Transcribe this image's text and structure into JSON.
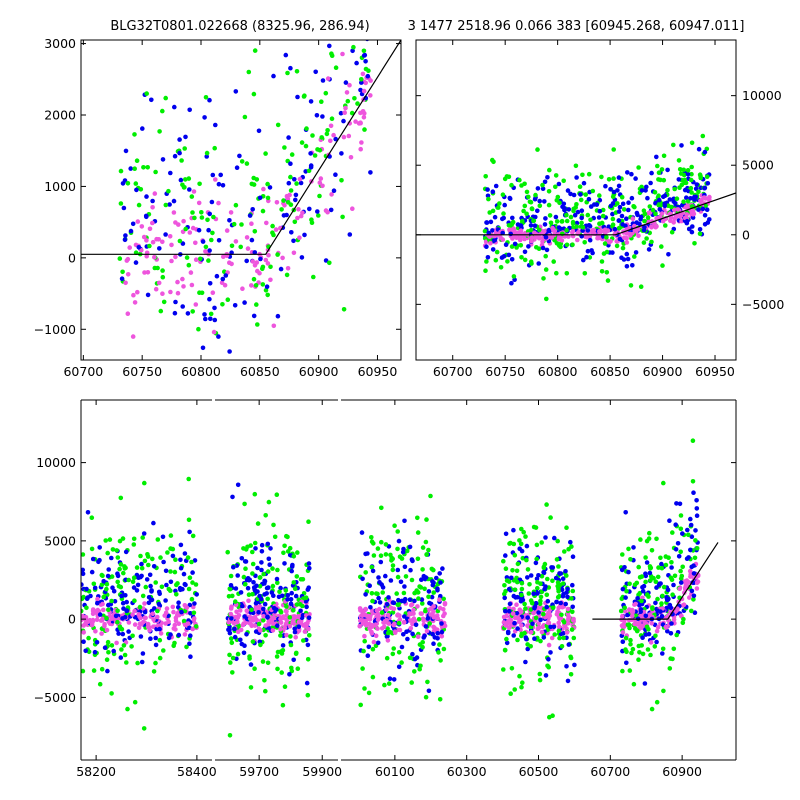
{
  "chart_data": [
    {
      "id": "top-left",
      "type": "scatter",
      "title": "BLG32T0801.022668 (8325.96, 286.94)",
      "xlim": [
        60698,
        60970
      ],
      "ylim": [
        -1430,
        3050
      ],
      "xticks": [
        60700,
        60750,
        60800,
        60850,
        60900,
        60950
      ],
      "yticks": [
        -1000,
        0,
        1000,
        2000,
        3000
      ],
      "y_axis_side": "left",
      "series": [
        {
          "name": "green",
          "color": "#00ee00"
        },
        {
          "name": "blue",
          "color": "#0000ee"
        },
        {
          "name": "magenta",
          "color": "#ee55dd"
        }
      ],
      "model_line": {
        "x": [
          60698,
          60855,
          60970
        ],
        "y": [
          50,
          50,
          3050
        ]
      }
    },
    {
      "id": "top-right",
      "type": "scatter",
      "title": "3 1477 2518.96 0.066 383 [60945.268, 60947.011]",
      "xlim": [
        60665,
        60970
      ],
      "ylim": [
        -9000,
        14000
      ],
      "xticks": [
        60700,
        60750,
        60800,
        60850,
        60900,
        60950
      ],
      "yticks": [
        -5000,
        0,
        5000,
        10000
      ],
      "y_axis_side": "right",
      "series": [
        {
          "name": "green",
          "color": "#00ee00"
        },
        {
          "name": "blue",
          "color": "#0000ee"
        },
        {
          "name": "magenta",
          "color": "#ee55dd"
        }
      ],
      "model_line": {
        "x": [
          60665,
          60855,
          60970
        ],
        "y": [
          0,
          0,
          3000
        ]
      }
    },
    {
      "id": "bottom",
      "type": "scatter",
      "title": "",
      "xlim": [
        58120,
        61000
      ],
      "ylim": [
        -9000,
        14000
      ],
      "xticks": [
        58200,
        58400,
        59700,
        59900,
        60100,
        60300,
        60500,
        60700,
        60900
      ],
      "yticks": [
        -5000,
        0,
        5000,
        10000
      ],
      "y_axis_side": "left",
      "broken_axis": true,
      "segments": [
        {
          "x": [
            58170,
            58430
          ],
          "ranges": [
            [
              58170,
              58400
            ]
          ]
        },
        {
          "x": [
            59560,
            59950
          ],
          "ranges": [
            [
              59600,
              59860
            ]
          ]
        },
        {
          "x": [
            59950,
            61050
          ],
          "ranges": [
            [
              60000,
              60240
            ],
            [
              60400,
              60600
            ],
            [
              60730,
              60945
            ]
          ]
        }
      ],
      "series": [
        {
          "name": "green",
          "color": "#00ee00"
        },
        {
          "name": "blue",
          "color": "#0000ee"
        },
        {
          "name": "magenta",
          "color": "#ee55dd"
        }
      ],
      "model_line": {
        "x": [
          60650,
          60860,
          61000
        ],
        "y": [
          0,
          0,
          4900
        ]
      }
    }
  ]
}
